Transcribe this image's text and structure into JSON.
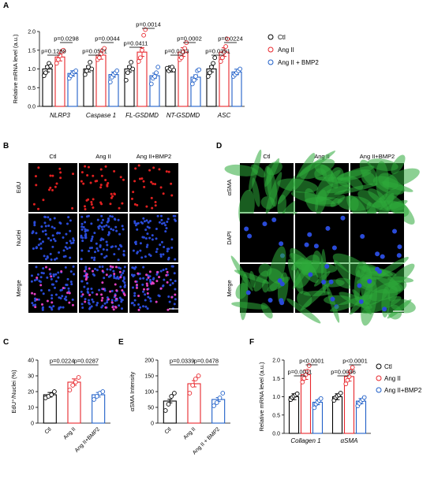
{
  "colors": {
    "ctl": "#000000",
    "ang": "#e8262c",
    "bmp": "#1f5fc8",
    "bg": "#ffffff",
    "cellbg": "#000000",
    "green": "#2eaa3a",
    "blue": "#2a4bd8",
    "red": "#e02020"
  },
  "panels": {
    "A": "A",
    "B": "B",
    "C": "C",
    "D": "D",
    "E": "E",
    "F": "F"
  },
  "panelA": {
    "ylabel": "Relative mRNA level (a.u.)",
    "ylim": [
      0,
      2.0
    ],
    "yticks": [
      "0.0",
      "0.5",
      "1.0",
      "1.5",
      "2.0"
    ],
    "legend": [
      "Ctl",
      "Ang II",
      "Ang II + BMP2"
    ],
    "pvalues": [
      "p=0.1289",
      "p=0.0298",
      "p=0.0571",
      "p=0.0044",
      "p=0.0411",
      "p=0.0014",
      "p=0.0113",
      "p=0.0002",
      "p=0.0391",
      "p=0.0224"
    ]
  },
  "panelB": {
    "cols": [
      "Ctl",
      "Ang II",
      "Ang II+BMP2"
    ],
    "rows": [
      "EdU",
      "Nuclei",
      "Merge"
    ]
  },
  "panelD": {
    "cols": [
      "Ctl",
      "Ang II",
      "Ang II+BMP2"
    ],
    "rows": [
      "αSMA",
      "DAPI",
      "Merge"
    ]
  },
  "panelC": {
    "ylabel": "EdU⁺/Nuclei (%)",
    "yticks": [
      "0",
      "10",
      "20",
      "30",
      "40"
    ],
    "ylim": [
      0,
      40
    ],
    "pvalues": [
      "p=0.0224",
      "p=0.0287"
    ]
  },
  "panelE": {
    "ylabel": "αSMA Intensity",
    "yticks": [
      "0",
      "50",
      "100",
      "150",
      "200"
    ],
    "ylim": [
      0,
      200
    ],
    "pvalues": [
      "p=0.0339",
      "p=0.0478"
    ]
  },
  "panelF": {
    "ylabel": "Relative mRNA level (a.u.)",
    "ylim": [
      0,
      2.0
    ],
    "yticks": [
      "0.0",
      "0.5",
      "1.0",
      "1.5",
      "2.0"
    ],
    "legend": [
      "Ctl",
      "Ang II",
      "Ang II+BMP2"
    ],
    "pvalues": [
      "p=0.0011",
      "p<0.0001",
      "p=0.0036",
      "p<0.0001"
    ]
  },
  "chart_data": [
    {
      "type": "bar",
      "panel": "A",
      "ylabel": "Relative mRNA level (a.u.)",
      "ylim": [
        0,
        2.0
      ],
      "categories": [
        "NLRP3",
        "Caspase 1",
        "FL-GSDMD",
        "NT-GSDMD",
        "ASC"
      ],
      "series": [
        {
          "name": "Ctl",
          "values": [
            1.0,
            1.0,
            1.0,
            1.0,
            1.0
          ],
          "points": [
            [
              0.82,
              0.9,
              1.05,
              1.15,
              1.08
            ],
            [
              0.85,
              0.95,
              1.05,
              1.18,
              1.0
            ],
            [
              0.7,
              0.9,
              1.05,
              1.18,
              1.0
            ],
            [
              1.02,
              0.95,
              1.0,
              1.05,
              0.97
            ],
            [
              0.8,
              0.9,
              1.05,
              1.15,
              1.3
            ]
          ]
        },
        {
          "name": "Ang II",
          "values": [
            1.32,
            1.37,
            1.45,
            1.45,
            1.45
          ],
          "points": [
            [
              1.15,
              1.25,
              1.35,
              1.45,
              1.5
            ],
            [
              1.25,
              1.3,
              1.4,
              1.5,
              1.55
            ],
            [
              1.2,
              1.3,
              1.5,
              1.9,
              2.05
            ],
            [
              1.25,
              1.3,
              1.45,
              1.55,
              1.7
            ],
            [
              1.2,
              1.3,
              1.45,
              1.6,
              1.8
            ]
          ]
        },
        {
          "name": "Ang II + BMP2",
          "values": [
            0.88,
            0.85,
            0.82,
            0.78,
            0.92
          ],
          "points": [
            [
              0.75,
              0.82,
              0.88,
              0.92,
              0.95
            ],
            [
              0.65,
              0.78,
              0.85,
              0.9,
              0.95
            ],
            [
              0.6,
              0.75,
              0.8,
              0.9,
              1.05
            ],
            [
              0.6,
              0.7,
              0.8,
              0.95,
              0.98
            ],
            [
              0.8,
              0.85,
              0.9,
              0.95,
              1.0
            ]
          ]
        }
      ]
    },
    {
      "type": "bar",
      "panel": "C",
      "ylabel": "EdU⁺/Nuclei (%)",
      "ylim": [
        0,
        40
      ],
      "categories": [
        "Ctl",
        "Ang II",
        "Ang II+BMP2"
      ],
      "values": [
        18,
        26,
        18
      ],
      "points": [
        [
          16,
          17,
          18,
          20
        ],
        [
          21,
          24,
          26,
          29
        ],
        [
          15,
          17,
          19,
          20
        ]
      ]
    },
    {
      "type": "bar",
      "panel": "E",
      "ylabel": "αSMA Intensity",
      "ylim": [
        0,
        200
      ],
      "categories": [
        "Ctl",
        "Ang II",
        "Ang II + BMP2"
      ],
      "values": [
        70,
        125,
        75
      ],
      "points": [
        [
          40,
          60,
          85,
          95
        ],
        [
          95,
          120,
          140,
          150
        ],
        [
          55,
          65,
          80,
          95
        ]
      ]
    },
    {
      "type": "bar",
      "panel": "F",
      "ylabel": "Relative mRNA level (a.u.)",
      "ylim": [
        0,
        2.0
      ],
      "categories": [
        "Collagen 1",
        "αSMA"
      ],
      "series": [
        {
          "name": "Ctl",
          "values": [
            1.0,
            1.0
          ],
          "points": [
            [
              0.92,
              0.98,
              1.02,
              1.05,
              1.08
            ],
            [
              0.9,
              0.98,
              1.02,
              1.05,
              1.1
            ]
          ]
        },
        {
          "name": "Ang II",
          "values": [
            1.6,
            1.55
          ],
          "points": [
            [
              1.4,
              1.5,
              1.6,
              1.7,
              1.85
            ],
            [
              1.35,
              1.45,
              1.55,
              1.7,
              1.8
            ]
          ]
        },
        {
          "name": "Ang II+BMP2",
          "values": [
            0.85,
            0.88
          ],
          "points": [
            [
              0.7,
              0.8,
              0.85,
              0.9,
              0.95
            ],
            [
              0.75,
              0.82,
              0.88,
              0.92,
              0.98
            ]
          ]
        }
      ]
    }
  ]
}
